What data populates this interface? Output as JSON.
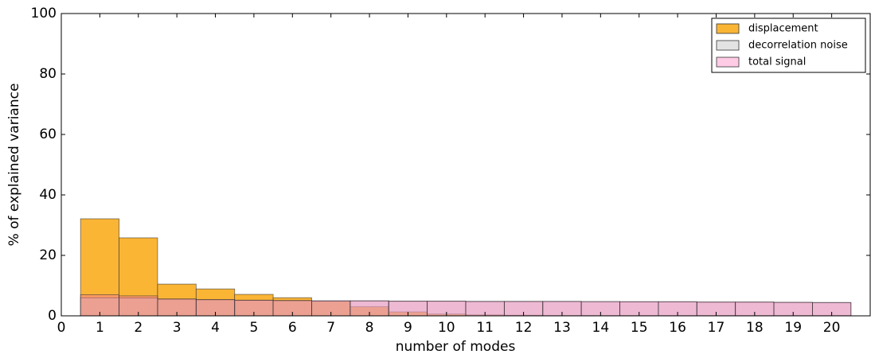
{
  "chart_data": {
    "type": "bar",
    "x_label": "number of modes",
    "y_label": "% of explained variance",
    "x": [
      1,
      2,
      3,
      4,
      5,
      6,
      7,
      8,
      9,
      10,
      11,
      12,
      13,
      14,
      15,
      16,
      17,
      18,
      19,
      20
    ],
    "xlim": [
      0,
      21
    ],
    "xticks": [
      0,
      1,
      2,
      3,
      4,
      5,
      6,
      7,
      8,
      9,
      10,
      11,
      12,
      13,
      14,
      15,
      16,
      17,
      18,
      19,
      20
    ],
    "ylim": [
      0,
      100
    ],
    "yticks": [
      0,
      20,
      40,
      60,
      80,
      100
    ],
    "legend": "upper right",
    "series": [
      {
        "name": "displacement",
        "color": "#fbb535",
        "values": [
          32.1,
          25.8,
          10.5,
          8.9,
          7.1,
          6.0,
          4.8,
          3.0,
          1.3,
          0.6,
          0.3,
          0.2,
          0.1,
          0.1,
          0.1,
          0.1,
          0.1,
          0.1,
          0.1,
          0.1
        ]
      },
      {
        "name": "decorrelation noise",
        "color": "rgba(200,200,200,0.5)",
        "values": [
          6.0,
          5.9,
          5.5,
          5.3,
          5.1,
          5.0,
          4.9,
          4.9,
          4.8,
          4.8,
          4.7,
          4.7,
          4.7,
          4.7,
          4.6,
          4.6,
          4.5,
          4.5,
          4.4,
          4.4
        ]
      },
      {
        "name": "total signal",
        "color": "rgba(255,105,180,0.35)",
        "values": [
          7.0,
          6.6,
          5.6,
          5.4,
          5.2,
          5.1,
          5.0,
          5.0,
          4.9,
          4.9,
          4.8,
          4.8,
          4.8,
          4.7,
          4.7,
          4.7,
          4.6,
          4.6,
          4.5,
          4.4
        ]
      }
    ]
  }
}
